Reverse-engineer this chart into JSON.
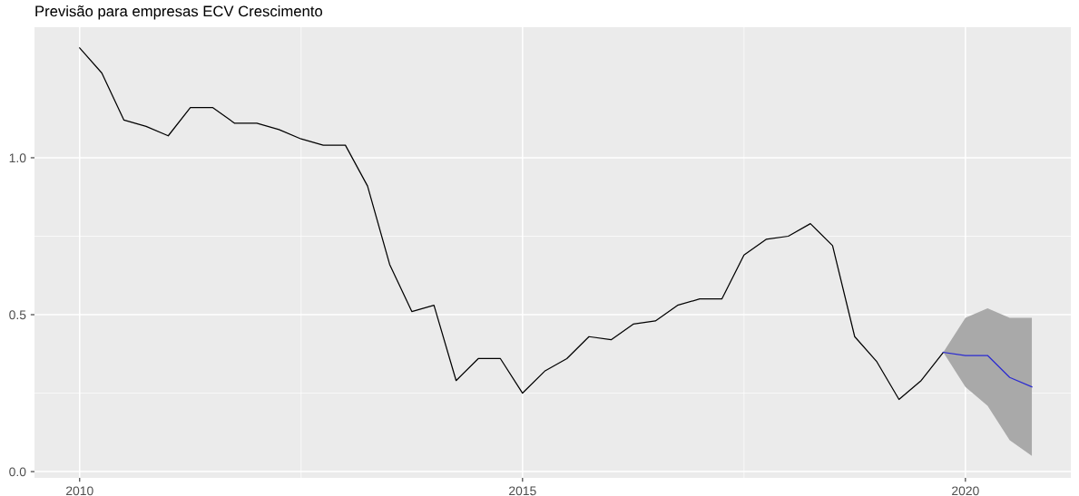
{
  "chart_data": {
    "type": "line",
    "title": "Previsão para empresas ECV Crescimento",
    "series": [
      {
        "color": "#000000",
        "x": [
          2010.0,
          2010.25,
          2010.5,
          2010.75,
          2011.0,
          2011.25,
          2011.5,
          2011.75,
          2012.0,
          2012.25,
          2012.5,
          2012.75,
          2013.0,
          2013.25,
          2013.5,
          2013.75,
          2014.0,
          2014.25,
          2014.5,
          2014.75,
          2015.0,
          2015.25,
          2015.5,
          2015.75,
          2016.0,
          2016.25,
          2016.5,
          2016.75,
          2017.0,
          2017.25,
          2017.5,
          2017.75,
          2018.0,
          2018.25,
          2018.5,
          2018.75,
          2019.0,
          2019.25,
          2019.5,
          2019.75
        ],
        "values": [
          1.35,
          1.27,
          1.12,
          1.1,
          1.07,
          1.16,
          1.16,
          1.11,
          1.11,
          1.09,
          1.06,
          1.04,
          1.04,
          0.91,
          0.66,
          0.51,
          0.53,
          0.29,
          0.36,
          0.36,
          0.25,
          0.32,
          0.36,
          0.43,
          0.42,
          0.47,
          0.48,
          0.53,
          0.55,
          0.55,
          0.69,
          0.74,
          0.75,
          0.79,
          0.72,
          0.43,
          0.35,
          0.23,
          0.29,
          0.38
        ]
      },
      {
        "color": "#2b2bd1",
        "x": [
          2019.75,
          2020.0,
          2020.25,
          2020.5,
          2020.75
        ],
        "values": [
          0.38,
          0.37,
          0.37,
          0.3,
          0.27
        ],
        "lower": [
          0.38,
          0.27,
          0.21,
          0.1,
          0.05
        ],
        "upper": [
          0.38,
          0.49,
          0.52,
          0.49,
          0.49
        ]
      }
    ],
    "xlim": [
      2009.49,
      2021.19
    ],
    "ylim": [
      -0.02,
      1.416
    ],
    "xticks": [
      2010,
      2015,
      2020
    ],
    "yticks": [
      {
        "value": 0,
        "label": "0.0"
      },
      {
        "value": 0.5,
        "label": "0.5"
      },
      {
        "value": 1,
        "label": "1.0"
      }
    ],
    "grid": true,
    "marker": "none",
    "line_style": "solid"
  }
}
